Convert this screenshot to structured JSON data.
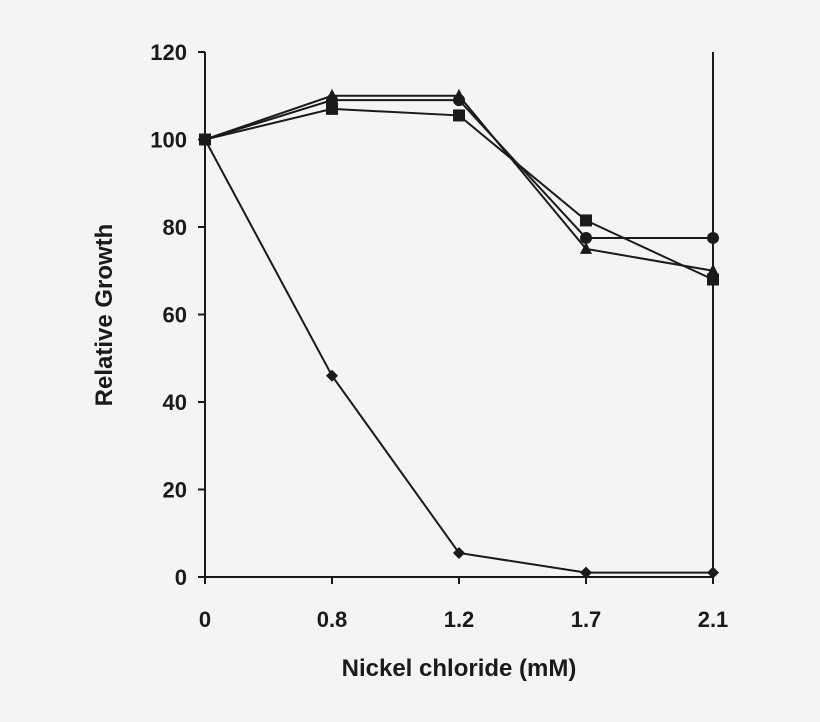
{
  "chart_data": {
    "type": "line",
    "title": "",
    "xlabel": "Nickel chloride (mM)",
    "ylabel": "Relative Growth",
    "categories": [
      "0",
      "0.8",
      "1.2",
      "1.7",
      "2.1"
    ],
    "ylim": [
      0,
      120
    ],
    "yticks": [
      "0",
      "20",
      "40",
      "60",
      "80",
      "100",
      "120"
    ],
    "grid": false,
    "legend": "none",
    "color": "#1a1a1a",
    "series": [
      {
        "marker": "diamond",
        "values": [
          100,
          46,
          5.5,
          1,
          1
        ]
      },
      {
        "marker": "triangle",
        "values": [
          100,
          110,
          110,
          75,
          70
        ]
      },
      {
        "marker": "square",
        "values": [
          100,
          107,
          105.5,
          81.5,
          68
        ]
      },
      {
        "marker": "circle",
        "values": [
          100,
          109,
          109,
          77.5,
          77.5
        ]
      }
    ]
  }
}
